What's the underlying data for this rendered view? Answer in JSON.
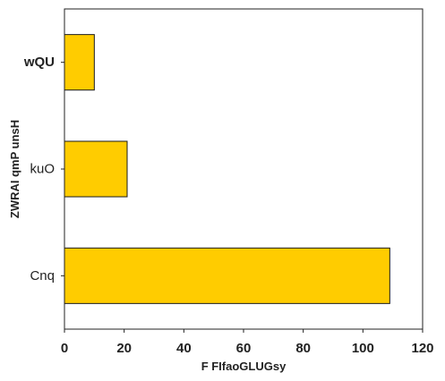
{
  "chart_data": {
    "type": "bar",
    "orientation": "horizontal",
    "categories": [
      "wQU",
      "kuO",
      "Cnq"
    ],
    "category_bold": [
      true,
      false,
      false
    ],
    "values": [
      10,
      21,
      109
    ],
    "xlabel": "F FIfaoGLUGsy",
    "ylabel": "ZWRAI qmP unsH",
    "xlim": [
      0,
      120
    ],
    "xticks": [
      0,
      20,
      40,
      60,
      80,
      100,
      120
    ],
    "bar_color": "#ffcc00",
    "edge_color": "#1a1a1a",
    "grid": false
  }
}
